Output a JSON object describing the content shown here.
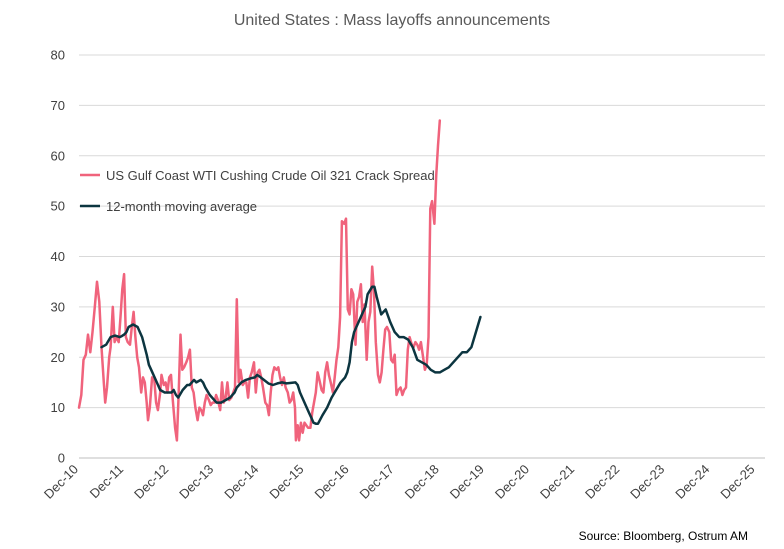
{
  "chart_data": {
    "type": "line",
    "title": "United States : Mass layoffs announcements",
    "source": "Source: Bloomberg, Ostrum AM",
    "ylim": [
      0,
      80
    ],
    "yticks": [
      "0",
      "10",
      "20",
      "30",
      "40",
      "50",
      "60",
      "70",
      "80"
    ],
    "xticks": [
      "Dec-10",
      "Dec-11",
      "Dec-12",
      "Dec-13",
      "Dec-14",
      "Dec-15",
      "Dec-16",
      "Dec-17",
      "Dec-18",
      "Dec-19",
      "Dec-20",
      "Dec-21",
      "Dec-22",
      "Dec-23",
      "Dec-24",
      "Dec-25"
    ],
    "grid": true,
    "legend_position": "upper-left-inside",
    "series": [
      {
        "name": "US Gulf Coast WTI Cushing Crude Oil 321 Crack Spread",
        "color": "#f0637c",
        "points": [
          [
            0,
            10
          ],
          [
            0.05,
            12.5
          ],
          [
            0.1,
            19.5
          ],
          [
            0.15,
            20.5
          ],
          [
            0.2,
            24.5
          ],
          [
            0.25,
            21
          ],
          [
            0.3,
            25
          ],
          [
            0.35,
            30
          ],
          [
            0.4,
            35
          ],
          [
            0.45,
            31
          ],
          [
            0.5,
            22
          ],
          [
            0.55,
            15
          ],
          [
            0.58,
            11
          ],
          [
            0.62,
            14
          ],
          [
            0.67,
            20
          ],
          [
            0.7,
            22
          ],
          [
            0.75,
            30
          ],
          [
            0.79,
            23
          ],
          [
            0.83,
            24
          ],
          [
            0.88,
            23
          ],
          [
            0.92,
            28
          ],
          [
            0.96,
            33.5
          ],
          [
            1.0,
            36.5
          ],
          [
            1.04,
            24
          ],
          [
            1.08,
            23
          ],
          [
            1.13,
            22.5
          ],
          [
            1.17,
            26
          ],
          [
            1.21,
            29
          ],
          [
            1.25,
            24
          ],
          [
            1.29,
            20
          ],
          [
            1.33,
            18
          ],
          [
            1.38,
            13
          ],
          [
            1.42,
            16
          ],
          [
            1.46,
            15
          ],
          [
            1.5,
            11
          ],
          [
            1.53,
            7.5
          ],
          [
            1.57,
            10
          ],
          [
            1.62,
            16
          ],
          [
            1.67,
            15.5
          ],
          [
            1.71,
            11
          ],
          [
            1.75,
            9.5
          ],
          [
            1.8,
            13
          ],
          [
            1.83,
            16.5
          ],
          [
            1.88,
            14.5
          ],
          [
            1.92,
            15
          ],
          [
            1.96,
            13
          ],
          [
            2.0,
            16
          ],
          [
            2.04,
            16.5
          ],
          [
            2.08,
            11.5
          ],
          [
            2.13,
            6
          ],
          [
            2.17,
            3.5
          ],
          [
            2.21,
            13
          ],
          [
            2.25,
            24.5
          ],
          [
            2.29,
            17.5
          ],
          [
            2.33,
            18
          ],
          [
            2.38,
            19
          ],
          [
            2.42,
            20
          ],
          [
            2.46,
            21.5
          ],
          [
            2.5,
            14
          ],
          [
            2.54,
            13
          ],
          [
            2.58,
            10
          ],
          [
            2.63,
            7.5
          ],
          [
            2.67,
            10
          ],
          [
            2.71,
            9.5
          ],
          [
            2.75,
            8.5
          ],
          [
            2.79,
            11
          ],
          [
            2.83,
            12.5
          ],
          [
            2.88,
            11.5
          ],
          [
            2.92,
            10.5
          ],
          [
            2.96,
            11
          ],
          [
            3.0,
            11
          ],
          [
            3.04,
            12.5
          ],
          [
            3.08,
            11.5
          ],
          [
            3.13,
            9.5
          ],
          [
            3.17,
            15
          ],
          [
            3.21,
            11
          ],
          [
            3.25,
            12
          ],
          [
            3.29,
            15
          ],
          [
            3.33,
            11.5
          ],
          [
            3.38,
            12
          ],
          [
            3.42,
            13
          ],
          [
            3.46,
            14
          ],
          [
            3.5,
            31.5
          ],
          [
            3.54,
            15
          ],
          [
            3.58,
            17.5
          ],
          [
            3.63,
            14.5
          ],
          [
            3.67,
            15
          ],
          [
            3.71,
            15
          ],
          [
            3.75,
            12
          ],
          [
            3.79,
            16
          ],
          [
            3.83,
            17
          ],
          [
            3.88,
            19
          ],
          [
            3.92,
            13
          ],
          [
            3.96,
            17
          ],
          [
            4.0,
            17.5
          ],
          [
            4.04,
            16
          ],
          [
            4.08,
            14
          ],
          [
            4.13,
            11
          ],
          [
            4.17,
            10.5
          ],
          [
            4.21,
            8.5
          ],
          [
            4.25,
            13
          ],
          [
            4.29,
            16.5
          ],
          [
            4.33,
            18
          ],
          [
            4.38,
            17.5
          ],
          [
            4.42,
            18
          ],
          [
            4.46,
            16
          ],
          [
            4.5,
            14.5
          ],
          [
            4.54,
            16
          ],
          [
            4.58,
            14
          ],
          [
            4.63,
            13
          ],
          [
            4.67,
            11
          ],
          [
            4.71,
            11.5
          ],
          [
            4.75,
            13
          ],
          [
            4.79,
            10
          ],
          [
            4.81,
            3.5
          ],
          [
            4.85,
            6.5
          ],
          [
            4.88,
            3.5
          ],
          [
            4.92,
            7
          ],
          [
            4.96,
            5
          ],
          [
            5.0,
            7
          ],
          [
            5.04,
            6.5
          ],
          [
            5.08,
            6
          ],
          [
            5.13,
            6
          ],
          [
            5.17,
            9
          ],
          [
            5.21,
            11
          ],
          [
            5.25,
            13
          ],
          [
            5.29,
            17
          ],
          [
            5.33,
            15.5
          ],
          [
            5.38,
            13.5
          ],
          [
            5.42,
            13
          ],
          [
            5.46,
            17
          ],
          [
            5.5,
            19
          ],
          [
            5.54,
            16.5
          ],
          [
            5.58,
            15
          ],
          [
            5.63,
            13
          ],
          [
            5.67,
            16
          ],
          [
            5.71,
            19.5
          ],
          [
            5.75,
            22
          ],
          [
            5.79,
            28
          ],
          [
            5.83,
            47
          ],
          [
            5.88,
            46.5
          ],
          [
            5.92,
            47.5
          ],
          [
            5.96,
            29.5
          ],
          [
            6.0,
            28.5
          ],
          [
            6.04,
            33.5
          ],
          [
            6.08,
            32.5
          ],
          [
            6.13,
            22.5
          ],
          [
            6.17,
            31
          ],
          [
            6.21,
            32
          ],
          [
            6.25,
            34.5
          ],
          [
            6.29,
            27
          ],
          [
            6.33,
            30.5
          ],
          [
            6.38,
            19.5
          ],
          [
            6.42,
            27
          ],
          [
            6.46,
            29
          ],
          [
            6.5,
            38
          ],
          [
            6.54,
            33
          ],
          [
            6.58,
            23
          ],
          [
            6.63,
            16.5
          ],
          [
            6.67,
            15
          ],
          [
            6.71,
            17
          ],
          [
            6.75,
            21.5
          ],
          [
            6.79,
            25.5
          ],
          [
            6.83,
            26
          ],
          [
            6.88,
            25
          ],
          [
            6.92,
            19.5
          ],
          [
            6.96,
            19
          ],
          [
            7.0,
            20.5
          ],
          [
            7.04,
            12.5
          ],
          [
            7.08,
            13.5
          ],
          [
            7.13,
            14
          ],
          [
            7.17,
            12.5
          ],
          [
            7.21,
            13.5
          ],
          [
            7.25,
            14
          ],
          [
            7.29,
            21.5
          ],
          [
            7.33,
            24
          ],
          [
            7.38,
            22.5
          ],
          [
            7.42,
            22
          ],
          [
            7.46,
            23
          ],
          [
            7.5,
            22.5
          ],
          [
            7.54,
            21.5
          ],
          [
            7.58,
            23
          ],
          [
            7.63,
            20
          ],
          [
            7.67,
            17.5
          ],
          [
            7.71,
            18.5
          ],
          [
            7.75,
            24
          ],
          [
            7.79,
            49.5
          ],
          [
            7.83,
            51
          ],
          [
            7.88,
            46.5
          ],
          [
            7.92,
            56
          ],
          [
            7.96,
            62
          ],
          [
            8.0,
            67
          ]
        ]
      },
      {
        "name": "12-month moving average",
        "color": "#0c3540",
        "points": [
          [
            0.5,
            22
          ],
          [
            0.6,
            22.5
          ],
          [
            0.7,
            24
          ],
          [
            0.8,
            24.3
          ],
          [
            0.9,
            24
          ],
          [
            0.95,
            24.2
          ],
          [
            1.0,
            24.5
          ],
          [
            1.05,
            25
          ],
          [
            1.1,
            26
          ],
          [
            1.2,
            26.5
          ],
          [
            1.3,
            26
          ],
          [
            1.4,
            24
          ],
          [
            1.5,
            20.5
          ],
          [
            1.55,
            18.5
          ],
          [
            1.6,
            17.5
          ],
          [
            1.7,
            15.5
          ],
          [
            1.8,
            13.5
          ],
          [
            1.9,
            13
          ],
          [
            2.0,
            13
          ],
          [
            2.05,
            13
          ],
          [
            2.1,
            13.5
          ],
          [
            2.15,
            12.5
          ],
          [
            2.2,
            12
          ],
          [
            2.3,
            13.5
          ],
          [
            2.4,
            14.5
          ],
          [
            2.45,
            14.5
          ],
          [
            2.5,
            15
          ],
          [
            2.55,
            15.5
          ],
          [
            2.6,
            15
          ],
          [
            2.7,
            15.5
          ],
          [
            2.75,
            15
          ],
          [
            2.8,
            14
          ],
          [
            2.9,
            12.5
          ],
          [
            3.0,
            11.5
          ],
          [
            3.05,
            11
          ],
          [
            3.15,
            11
          ],
          [
            3.25,
            11.5
          ],
          [
            3.35,
            12
          ],
          [
            3.45,
            13
          ],
          [
            3.5,
            14
          ],
          [
            3.6,
            15
          ],
          [
            3.7,
            15.5
          ],
          [
            3.8,
            15.8
          ],
          [
            3.9,
            16
          ],
          [
            3.95,
            16.5
          ],
          [
            4.0,
            16.2
          ],
          [
            4.1,
            15.5
          ],
          [
            4.2,
            14.8
          ],
          [
            4.3,
            14.5
          ],
          [
            4.4,
            14.8
          ],
          [
            4.5,
            15
          ],
          [
            4.6,
            14.8
          ],
          [
            4.7,
            14.9
          ],
          [
            4.8,
            15
          ],
          [
            4.85,
            14.5
          ],
          [
            4.9,
            13
          ],
          [
            5.0,
            11
          ],
          [
            5.1,
            9
          ],
          [
            5.15,
            8
          ],
          [
            5.2,
            7
          ],
          [
            5.25,
            6.8
          ],
          [
            5.3,
            6.8
          ],
          [
            5.4,
            8.5
          ],
          [
            5.5,
            10
          ],
          [
            5.6,
            12
          ],
          [
            5.7,
            13.5
          ],
          [
            5.8,
            15
          ],
          [
            5.9,
            16
          ],
          [
            5.95,
            17
          ],
          [
            6.0,
            19
          ],
          [
            6.05,
            23
          ],
          [
            6.1,
            25
          ],
          [
            6.2,
            27
          ],
          [
            6.3,
            29
          ],
          [
            6.35,
            30
          ],
          [
            6.4,
            32.5
          ],
          [
            6.5,
            34
          ],
          [
            6.55,
            34
          ],
          [
            6.6,
            32
          ],
          [
            6.7,
            28.5
          ],
          [
            6.8,
            29.5
          ],
          [
            6.9,
            27
          ],
          [
            7.0,
            25
          ],
          [
            7.1,
            24
          ],
          [
            7.2,
            24
          ],
          [
            7.3,
            23.5
          ],
          [
            7.4,
            22
          ],
          [
            7.5,
            19.5
          ],
          [
            7.6,
            19
          ],
          [
            7.7,
            18.5
          ],
          [
            7.8,
            17.5
          ],
          [
            7.9,
            17
          ],
          [
            8.0,
            17
          ],
          [
            8.1,
            17.5
          ],
          [
            8.2,
            18
          ],
          [
            8.3,
            19
          ],
          [
            8.4,
            20
          ],
          [
            8.5,
            21
          ],
          [
            8.6,
            21
          ],
          [
            8.7,
            22
          ],
          [
            8.8,
            25
          ],
          [
            8.9,
            28
          ]
        ]
      }
    ]
  }
}
